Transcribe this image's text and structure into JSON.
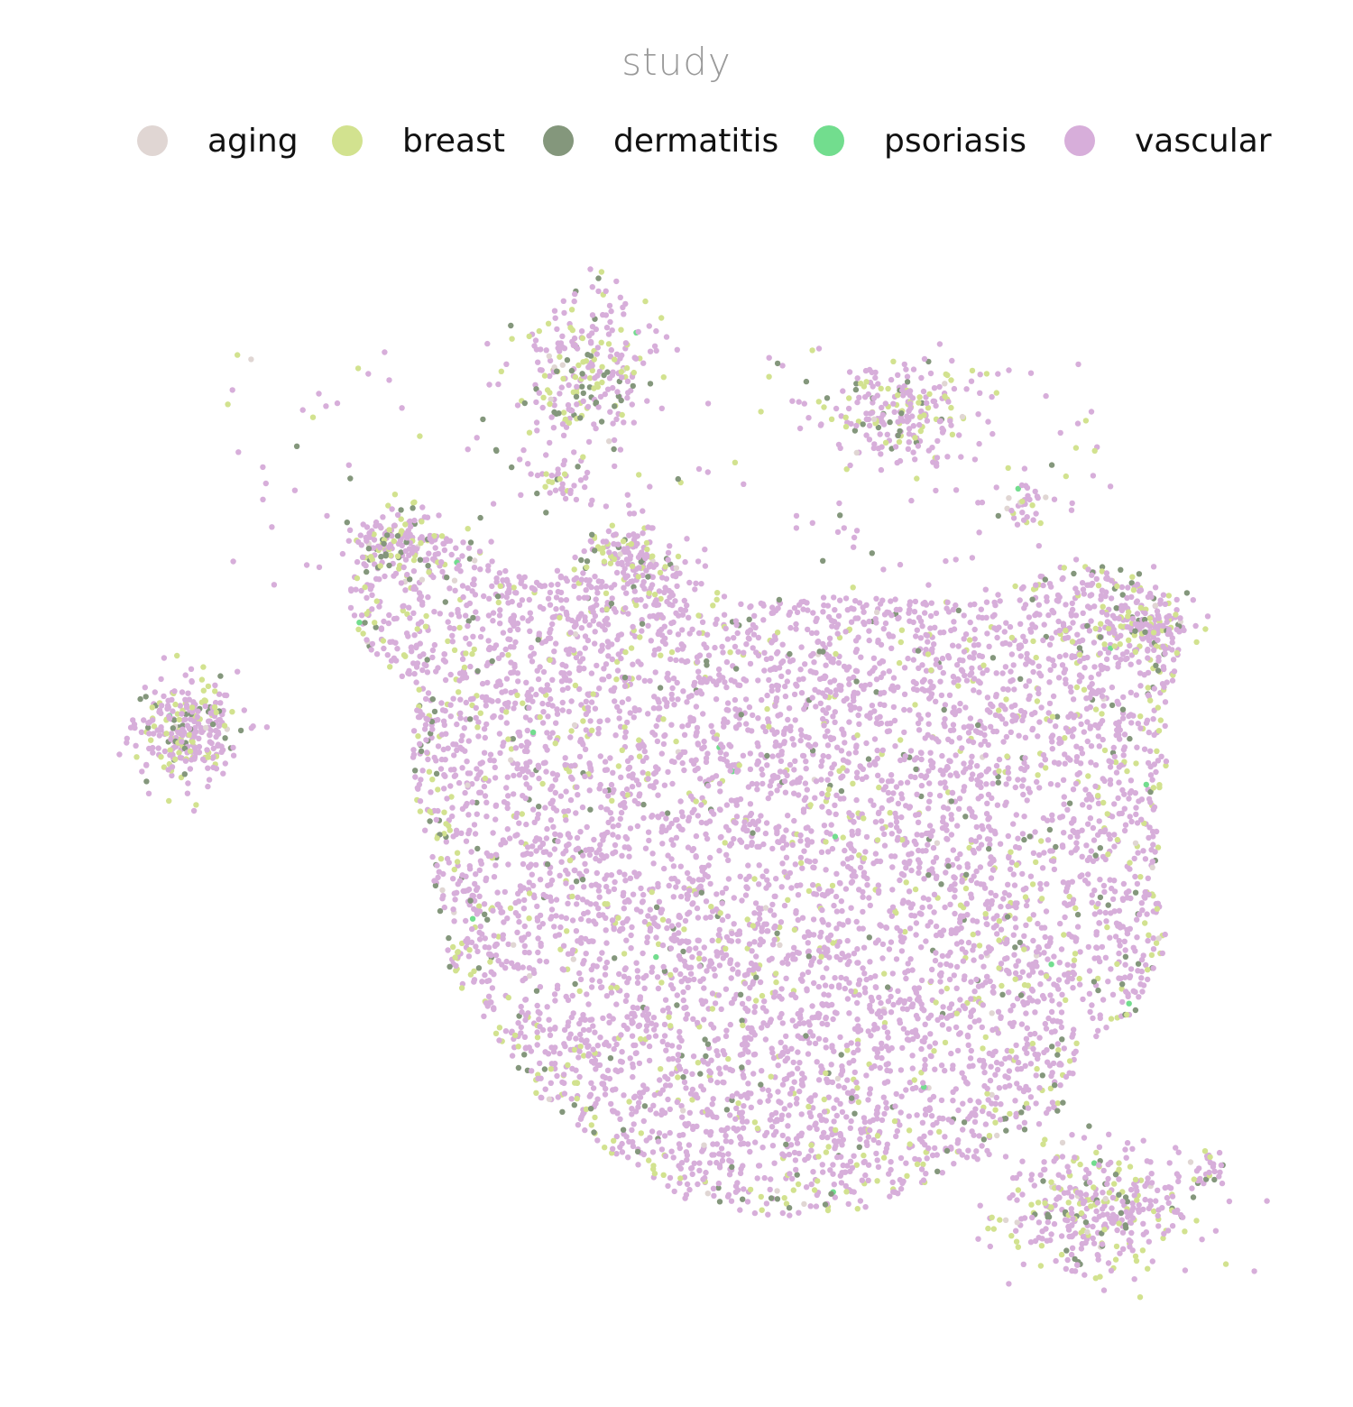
{
  "chart_data": {
    "type": "scatter",
    "title": "",
    "legend_title": "study",
    "legend_position": "top",
    "xlabel": "",
    "ylabel": "",
    "axes_visible": false,
    "grid": false,
    "point_count_approx": 9000,
    "series": [
      {
        "name": "aging",
        "color": "#E0D6D3"
      },
      {
        "name": "breast",
        "color": "#D2E28F"
      },
      {
        "name": "dermatitis",
        "color": "#84977C"
      },
      {
        "name": "psoriasis",
        "color": "#72DD8E"
      },
      {
        "name": "vascular",
        "color": "#D7AEDA"
      }
    ]
  }
}
